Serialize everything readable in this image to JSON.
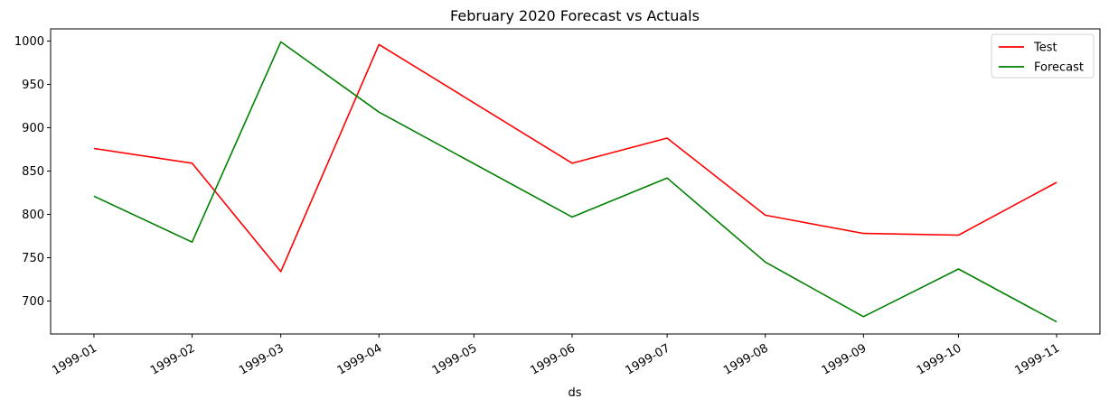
{
  "chart_data": {
    "type": "line",
    "title": "February 2020 Forecast vs Actuals",
    "xlabel": "ds",
    "ylabel": "",
    "x": [
      "1999-01",
      "1999-02",
      "1999-03",
      "1999-04",
      "1999-05",
      "1999-06",
      "1999-07",
      "1999-08",
      "1999-09",
      "1999-10",
      "1999-11"
    ],
    "yticks": [
      700,
      750,
      800,
      850,
      900,
      950,
      1000
    ],
    "ylim": [
      662,
      1014
    ],
    "grid": false,
    "legend_position": "top-right",
    "series": [
      {
        "name": "Test",
        "color": "#ff0000",
        "values": [
          {
            "x": "1999-01-01",
            "y": 876
          },
          {
            "x": "1999-02-01",
            "y": 859
          },
          {
            "x": "1999-03-01",
            "y": 734
          },
          {
            "x": "1999-04-01",
            "y": 996
          },
          {
            "x": "1999-06-01",
            "y": 859
          },
          {
            "x": "1999-07-01",
            "y": 888
          },
          {
            "x": "1999-08-01",
            "y": 799
          },
          {
            "x": "1999-09-01",
            "y": 778
          },
          {
            "x": "1999-10-01",
            "y": 776
          },
          {
            "x": "1999-11-01",
            "y": 837
          }
        ]
      },
      {
        "name": "Forecast",
        "color": "#008000",
        "values": [
          {
            "x": "1999-01-01",
            "y": 821
          },
          {
            "x": "1999-02-01",
            "y": 768
          },
          {
            "x": "1999-03-01",
            "y": 999
          },
          {
            "x": "1999-04-01",
            "y": 918
          },
          {
            "x": "1999-06-01",
            "y": 797
          },
          {
            "x": "1999-07-01",
            "y": 842
          },
          {
            "x": "1999-08-01",
            "y": 745
          },
          {
            "x": "1999-09-01",
            "y": 682
          },
          {
            "x": "1999-10-01",
            "y": 737
          },
          {
            "x": "1999-11-01",
            "y": 676
          }
        ]
      }
    ]
  }
}
